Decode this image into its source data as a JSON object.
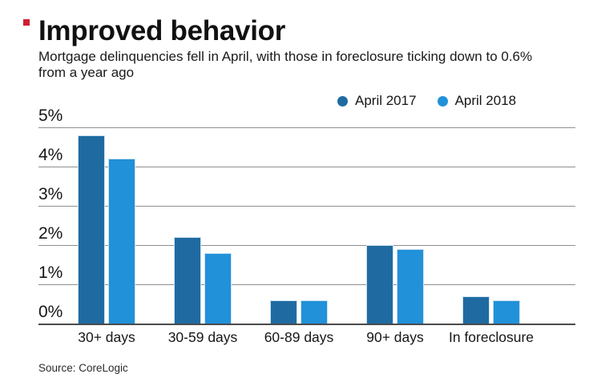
{
  "page": {
    "background": "#ffffff"
  },
  "brand": {
    "mark_color": "#cf2030"
  },
  "header": {
    "title": "Improved behavior",
    "subtitle": "Mortgage delinquencies fell in April, with those in foreclosure ticking down to 0.6% from a year ago"
  },
  "chart_data": {
    "type": "bar",
    "title": "Improved behavior",
    "subtitle": "Mortgage delinquencies fell in April, with those in foreclosure ticking down to 0.6% from a year ago",
    "categories": [
      "30+ days",
      "30-59 days",
      "60-89 days",
      "90+ days",
      "In foreclosure"
    ],
    "series": [
      {
        "name": "April 2017",
        "color": "#1f6ba1",
        "values": [
          4.8,
          2.2,
          0.6,
          2.0,
          0.7
        ]
      },
      {
        "name": "April 2018",
        "color": "#2191d9",
        "values": [
          4.2,
          1.8,
          0.6,
          1.9,
          0.6
        ]
      }
    ],
    "xlabel": "",
    "ylabel": "",
    "y_ticks": [
      "5%",
      "4%",
      "3%",
      "2%",
      "1%",
      "0%"
    ],
    "ylim": [
      0,
      5
    ],
    "grid": true,
    "gridline_color": "#8f8f8f",
    "baseline_color": "#4a4a4a",
    "legend_position": "top-right"
  },
  "footer": {
    "source": "Source: CoreLogic"
  }
}
